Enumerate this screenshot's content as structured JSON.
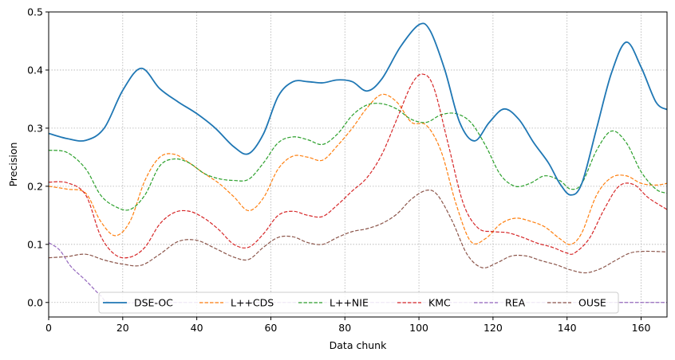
{
  "chart_data": {
    "type": "line",
    "xlabel": "Data chunk",
    "ylabel": "Precision",
    "xlim": [
      0,
      167
    ],
    "ylim": [
      -0.025,
      0.5
    ],
    "xticks": [
      0,
      20,
      40,
      60,
      80,
      100,
      120,
      140,
      160
    ],
    "yticks": [
      0.0,
      0.1,
      0.2,
      0.3,
      0.4,
      0.5
    ],
    "ytick_labels": [
      "0.0",
      "0.1",
      "0.2",
      "0.3",
      "0.4",
      "0.5"
    ],
    "grid": true,
    "legend_position": "lower-center",
    "series": [
      {
        "name": "DSE-OC",
        "color": "#1f77b4",
        "style": "solid",
        "width": 1.8,
        "points": [
          [
            0,
            0.291
          ],
          [
            5,
            0.282
          ],
          [
            10,
            0.279
          ],
          [
            15,
            0.3
          ],
          [
            20,
            0.365
          ],
          [
            25,
            0.403
          ],
          [
            30,
            0.368
          ],
          [
            35,
            0.345
          ],
          [
            40,
            0.325
          ],
          [
            45,
            0.3
          ],
          [
            50,
            0.268
          ],
          [
            54,
            0.256
          ],
          [
            58,
            0.29
          ],
          [
            62,
            0.355
          ],
          [
            66,
            0.38
          ],
          [
            70,
            0.38
          ],
          [
            74,
            0.378
          ],
          [
            78,
            0.383
          ],
          [
            82,
            0.38
          ],
          [
            86,
            0.364
          ],
          [
            90,
            0.385
          ],
          [
            95,
            0.44
          ],
          [
            100,
            0.478
          ],
          [
            103,
            0.468
          ],
          [
            107,
            0.4
          ],
          [
            111,
            0.31
          ],
          [
            115,
            0.278
          ],
          [
            119,
            0.31
          ],
          [
            123,
            0.333
          ],
          [
            127,
            0.315
          ],
          [
            131,
            0.275
          ],
          [
            135,
            0.24
          ],
          [
            138,
            0.205
          ],
          [
            141,
            0.185
          ],
          [
            144,
            0.205
          ],
          [
            148,
            0.3
          ],
          [
            152,
            0.395
          ],
          [
            156,
            0.448
          ],
          [
            160,
            0.405
          ],
          [
            164,
            0.345
          ],
          [
            167,
            0.332
          ]
        ]
      },
      {
        "name": "L++CDS",
        "color": "#ff7f0e",
        "style": "dashed",
        "width": 1.2,
        "points": [
          [
            0,
            0.2
          ],
          [
            5,
            0.195
          ],
          [
            10,
            0.188
          ],
          [
            14,
            0.14
          ],
          [
            18,
            0.115
          ],
          [
            22,
            0.14
          ],
          [
            26,
            0.21
          ],
          [
            30,
            0.25
          ],
          [
            34,
            0.255
          ],
          [
            38,
            0.24
          ],
          [
            42,
            0.222
          ],
          [
            46,
            0.205
          ],
          [
            50,
            0.182
          ],
          [
            54,
            0.158
          ],
          [
            58,
            0.18
          ],
          [
            62,
            0.23
          ],
          [
            66,
            0.252
          ],
          [
            70,
            0.25
          ],
          [
            74,
            0.245
          ],
          [
            78,
            0.27
          ],
          [
            82,
            0.3
          ],
          [
            86,
            0.335
          ],
          [
            90,
            0.358
          ],
          [
            94,
            0.345
          ],
          [
            98,
            0.31
          ],
          [
            102,
            0.305
          ],
          [
            106,
            0.26
          ],
          [
            110,
            0.17
          ],
          [
            114,
            0.105
          ],
          [
            118,
            0.11
          ],
          [
            122,
            0.135
          ],
          [
            126,
            0.145
          ],
          [
            130,
            0.14
          ],
          [
            134,
            0.13
          ],
          [
            138,
            0.11
          ],
          [
            141,
            0.1
          ],
          [
            144,
            0.12
          ],
          [
            148,
            0.185
          ],
          [
            152,
            0.215
          ],
          [
            156,
            0.218
          ],
          [
            160,
            0.205
          ],
          [
            164,
            0.202
          ],
          [
            167,
            0.205
          ]
        ]
      },
      {
        "name": "L++NIE",
        "color": "#2ca02c",
        "style": "dashed",
        "width": 1.2,
        "points": [
          [
            0,
            0.262
          ],
          [
            5,
            0.258
          ],
          [
            10,
            0.23
          ],
          [
            14,
            0.185
          ],
          [
            18,
            0.165
          ],
          [
            22,
            0.16
          ],
          [
            26,
            0.185
          ],
          [
            30,
            0.235
          ],
          [
            34,
            0.247
          ],
          [
            38,
            0.24
          ],
          [
            42,
            0.222
          ],
          [
            46,
            0.213
          ],
          [
            50,
            0.21
          ],
          [
            54,
            0.212
          ],
          [
            58,
            0.24
          ],
          [
            62,
            0.275
          ],
          [
            66,
            0.285
          ],
          [
            70,
            0.28
          ],
          [
            74,
            0.272
          ],
          [
            78,
            0.29
          ],
          [
            82,
            0.322
          ],
          [
            86,
            0.34
          ],
          [
            90,
            0.342
          ],
          [
            94,
            0.333
          ],
          [
            98,
            0.315
          ],
          [
            102,
            0.31
          ],
          [
            106,
            0.323
          ],
          [
            110,
            0.325
          ],
          [
            114,
            0.31
          ],
          [
            118,
            0.27
          ],
          [
            122,
            0.22
          ],
          [
            126,
            0.2
          ],
          [
            130,
            0.205
          ],
          [
            134,
            0.218
          ],
          [
            138,
            0.21
          ],
          [
            141,
            0.195
          ],
          [
            144,
            0.205
          ],
          [
            148,
            0.262
          ],
          [
            152,
            0.295
          ],
          [
            156,
            0.275
          ],
          [
            160,
            0.225
          ],
          [
            164,
            0.195
          ],
          [
            167,
            0.188
          ]
        ]
      },
      {
        "name": "KMC",
        "color": "#d62728",
        "style": "dashed",
        "width": 1.2,
        "points": [
          [
            0,
            0.207
          ],
          [
            5,
            0.206
          ],
          [
            10,
            0.185
          ],
          [
            14,
            0.115
          ],
          [
            18,
            0.082
          ],
          [
            22,
            0.078
          ],
          [
            26,
            0.095
          ],
          [
            30,
            0.135
          ],
          [
            34,
            0.155
          ],
          [
            38,
            0.157
          ],
          [
            42,
            0.145
          ],
          [
            46,
            0.125
          ],
          [
            50,
            0.1
          ],
          [
            54,
            0.095
          ],
          [
            58,
            0.118
          ],
          [
            62,
            0.15
          ],
          [
            66,
            0.157
          ],
          [
            70,
            0.15
          ],
          [
            74,
            0.148
          ],
          [
            78,
            0.168
          ],
          [
            82,
            0.192
          ],
          [
            86,
            0.215
          ],
          [
            90,
            0.255
          ],
          [
            94,
            0.315
          ],
          [
            98,
            0.375
          ],
          [
            101,
            0.393
          ],
          [
            104,
            0.37
          ],
          [
            108,
            0.27
          ],
          [
            112,
            0.17
          ],
          [
            116,
            0.128
          ],
          [
            120,
            0.122
          ],
          [
            124,
            0.12
          ],
          [
            128,
            0.112
          ],
          [
            132,
            0.102
          ],
          [
            136,
            0.095
          ],
          [
            140,
            0.085
          ],
          [
            142,
            0.085
          ],
          [
            146,
            0.11
          ],
          [
            150,
            0.16
          ],
          [
            154,
            0.2
          ],
          [
            158,
            0.203
          ],
          [
            162,
            0.18
          ],
          [
            167,
            0.16
          ]
        ]
      },
      {
        "name": "REA",
        "color": "#9467bd",
        "style": "dashed",
        "width": 1.2,
        "points": [
          [
            0,
            0.103
          ],
          [
            3,
            0.09
          ],
          [
            6,
            0.062
          ],
          [
            10,
            0.038
          ],
          [
            14,
            0.012
          ],
          [
            17,
            0.0
          ],
          [
            30,
            0.0
          ],
          [
            60,
            0.0
          ],
          [
            90,
            0.0
          ],
          [
            120,
            0.0
          ],
          [
            150,
            0.0
          ],
          [
            167,
            0.0
          ]
        ]
      },
      {
        "name": "OUSE",
        "color": "#8c564b",
        "style": "dashed",
        "width": 1.2,
        "points": [
          [
            0,
            0.077
          ],
          [
            5,
            0.079
          ],
          [
            10,
            0.083
          ],
          [
            15,
            0.073
          ],
          [
            20,
            0.066
          ],
          [
            25,
            0.064
          ],
          [
            30,
            0.083
          ],
          [
            35,
            0.105
          ],
          [
            40,
            0.107
          ],
          [
            45,
            0.093
          ],
          [
            50,
            0.078
          ],
          [
            54,
            0.074
          ],
          [
            58,
            0.095
          ],
          [
            62,
            0.112
          ],
          [
            66,
            0.113
          ],
          [
            70,
            0.103
          ],
          [
            74,
            0.1
          ],
          [
            78,
            0.112
          ],
          [
            82,
            0.122
          ],
          [
            86,
            0.127
          ],
          [
            90,
            0.136
          ],
          [
            94,
            0.152
          ],
          [
            98,
            0.178
          ],
          [
            102,
            0.193
          ],
          [
            105,
            0.185
          ],
          [
            109,
            0.14
          ],
          [
            113,
            0.083
          ],
          [
            117,
            0.06
          ],
          [
            121,
            0.068
          ],
          [
            125,
            0.08
          ],
          [
            129,
            0.08
          ],
          [
            133,
            0.072
          ],
          [
            137,
            0.065
          ],
          [
            141,
            0.056
          ],
          [
            145,
            0.051
          ],
          [
            149,
            0.058
          ],
          [
            153,
            0.072
          ],
          [
            157,
            0.085
          ],
          [
            161,
            0.088
          ],
          [
            167,
            0.087
          ]
        ]
      }
    ]
  }
}
